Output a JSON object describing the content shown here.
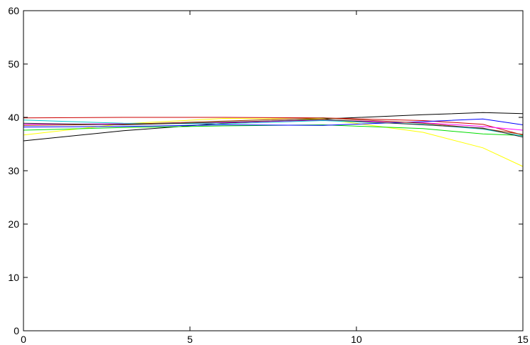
{
  "chart_data": {
    "type": "line",
    "title": "",
    "xlabel": "",
    "ylabel": "",
    "xlim": [
      0,
      15
    ],
    "ylim": [
      0,
      60
    ],
    "x_ticks": [
      "0",
      "5",
      "10",
      "15"
    ],
    "y_ticks": [
      "0",
      "10",
      "20",
      "30",
      "40",
      "50",
      "60"
    ],
    "grid": false,
    "legend": "none",
    "x": [
      0,
      3,
      6,
      9,
      12,
      13.8,
      15
    ],
    "series": [
      {
        "color": "#000000",
        "values": [
          35.6,
          37.5,
          38.9,
          39.7,
          40.5,
          40.9,
          40.7
        ]
      },
      {
        "color": "#cc0000",
        "values": [
          39.9,
          40.0,
          40.0,
          39.9,
          39.4,
          38.7,
          36.7
        ]
      },
      {
        "color": "#ffff00",
        "values": [
          36.7,
          38.8,
          39.8,
          39.7,
          37.2,
          34.3,
          30.8
        ]
      },
      {
        "color": "#00dd00",
        "values": [
          37.6,
          38.1,
          38.4,
          38.6,
          37.9,
          36.9,
          36.6
        ]
      },
      {
        "color": "#0000ff",
        "values": [
          38.2,
          38.3,
          38.6,
          38.5,
          39.2,
          39.7,
          38.6
        ]
      },
      {
        "color": "#ff00ff",
        "values": [
          38.7,
          38.8,
          39.0,
          39.5,
          39.0,
          38.3,
          37.6
        ]
      },
      {
        "color": "#00cccc",
        "values": [
          39.5,
          38.9,
          38.8,
          39.4,
          38.7,
          37.8,
          36.5
        ]
      },
      {
        "color": "#993300",
        "values": [
          38.5,
          38.7,
          39.3,
          39.9,
          38.9,
          37.9,
          36.8
        ]
      },
      {
        "color": "#333333",
        "values": [
          38.9,
          38.6,
          39.1,
          39.6,
          38.6,
          38.0,
          36.3
        ]
      }
    ]
  }
}
